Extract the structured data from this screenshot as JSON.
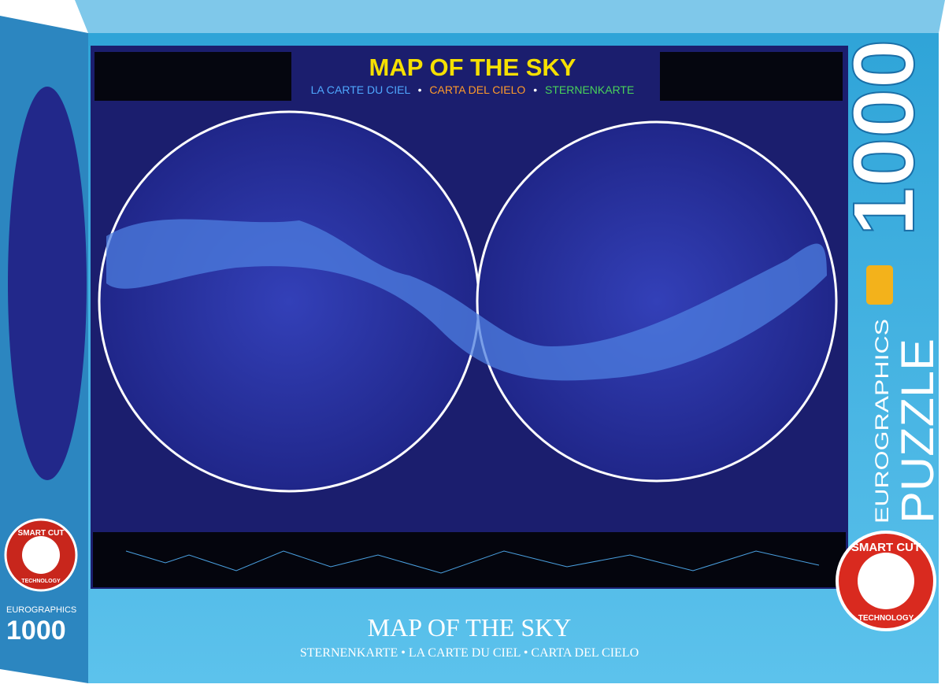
{
  "poster": {
    "title": "MAP OF THE SKY",
    "subtitles": [
      "LA CARTE DU CIEL",
      "CARTA DEL CIELO",
      "STERNENKARTE"
    ],
    "separator": "•"
  },
  "side": {
    "brand": "EUROGRAPHICS",
    "product": "PUZZLE",
    "pieces": "1000"
  },
  "badge": {
    "top": "SMART CUT",
    "bottom": "TECHNOLOGY"
  },
  "footer": {
    "title": "MAP OF THE SKY",
    "subtitle": "STERNENKARTE • LA CARTE DU CIEL • CARTA DEL CIELO"
  }
}
